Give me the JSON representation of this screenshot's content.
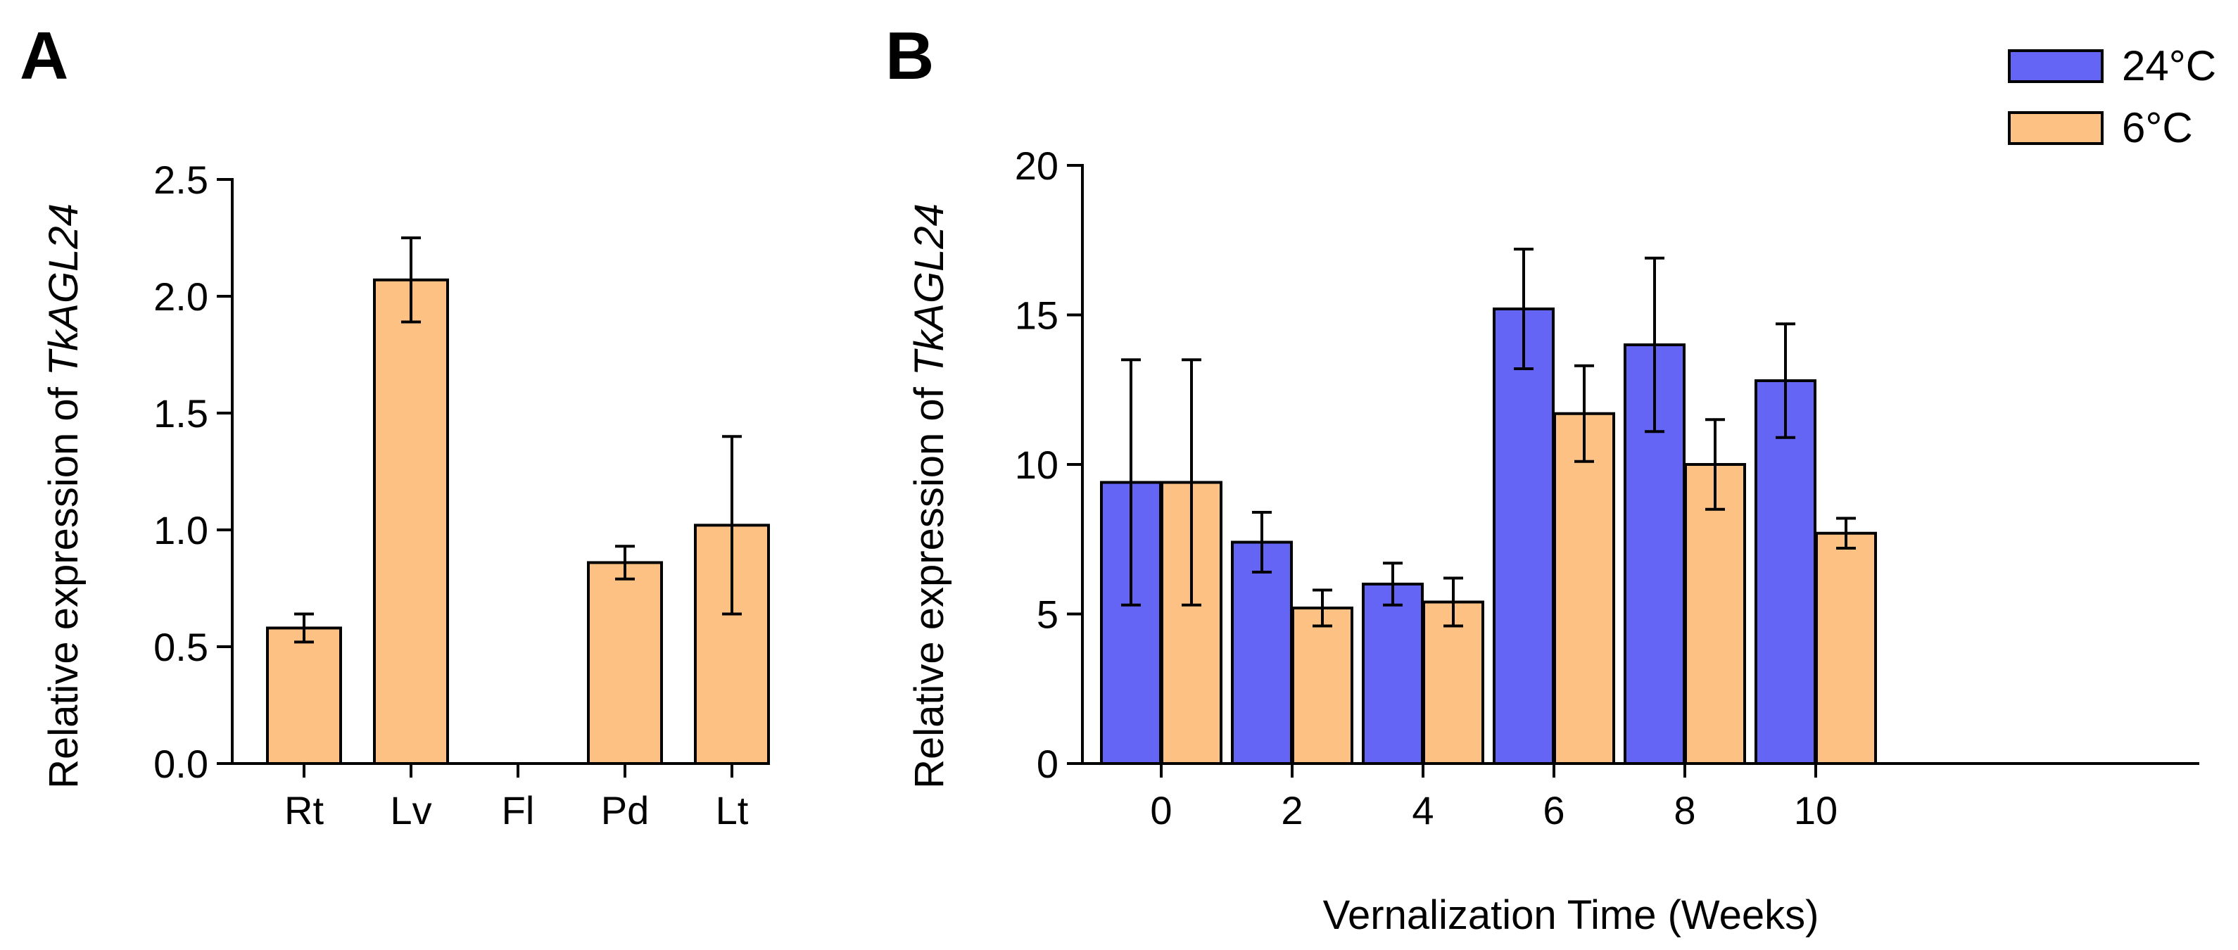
{
  "chart_data": [
    {
      "panel": "A",
      "type": "bar",
      "ylabel_prefix": "Relative expression of ",
      "ylabel_gene": "TkAGL24",
      "xlabel": "",
      "ylim": [
        0,
        2.5
      ],
      "yticks": [
        0,
        0.5,
        1.0,
        1.5,
        2.0,
        2.5
      ],
      "ytick_labels": [
        "0.0",
        "0.5",
        "1.0",
        "1.5",
        "2.0",
        "2.5"
      ],
      "categories": [
        "Rt",
        "Lv",
        "Fl",
        "Pd",
        "Lt"
      ],
      "values": [
        0.58,
        2.07,
        0,
        0.86,
        1.02
      ],
      "errors": [
        0.06,
        0.18,
        0,
        0.07,
        0.38
      ],
      "bar_color": "#fdc283",
      "grid": false
    },
    {
      "panel": "B",
      "type": "bar",
      "ylabel_prefix": "Relative expression of ",
      "ylabel_gene": "TkAGL24",
      "xlabel": "Vernalization Time (Weeks)",
      "ylim": [
        0,
        20
      ],
      "yticks": [
        0,
        5,
        10,
        15,
        20
      ],
      "ytick_labels": [
        "0",
        "5",
        "10",
        "15",
        "20"
      ],
      "categories": [
        "0",
        "2",
        "4",
        "6",
        "8",
        "10"
      ],
      "series": [
        {
          "name": "24°C",
          "color": "#6464f5",
          "values": [
            9.4,
            7.4,
            6.0,
            15.2,
            14.0,
            12.8
          ],
          "errors": [
            4.1,
            1.0,
            0.7,
            2.0,
            2.9,
            1.9
          ]
        },
        {
          "name": "6°C",
          "color": "#fdc283",
          "values": [
            9.4,
            5.2,
            5.4,
            11.7,
            10.0,
            7.7
          ],
          "errors": [
            4.1,
            0.6,
            0.8,
            1.6,
            1.5,
            0.5
          ]
        }
      ],
      "legend_position": "top-right",
      "grid": false
    }
  ]
}
